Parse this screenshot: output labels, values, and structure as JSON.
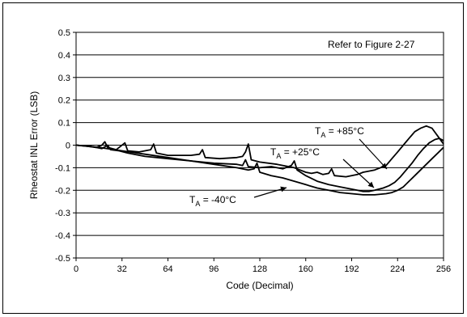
{
  "chart_data": {
    "type": "line",
    "title": "",
    "xlabel": "Code (Decimal)",
    "ylabel": "Rheostat INL Error (LSB)",
    "xlim": [
      0,
      256
    ],
    "ylim": [
      -0.5,
      0.5
    ],
    "x_ticks": [
      0,
      32,
      64,
      96,
      128,
      160,
      192,
      224,
      256
    ],
    "y_ticks": [
      0.5,
      0.4,
      0.3,
      0.2,
      0.1,
      0,
      -0.1,
      -0.2,
      -0.3,
      -0.4,
      -0.5
    ],
    "x_tick_labels": [
      "0",
      "32",
      "64",
      "96",
      "128",
      "160",
      "192",
      "224",
      "256"
    ],
    "y_tick_labels": [
      "0.5",
      "0.4",
      "0.3",
      "0.2",
      "0.1",
      "0",
      "-0.1",
      "-0.2",
      "-0.3",
      "-0.4",
      "-0.5"
    ],
    "grid": "horizontal",
    "note": "Refer to Figure 2-27",
    "series": [
      {
        "label_main": "T",
        "label_sub": "A",
        "label_rest": " = +85°C",
        "points": [
          [
            0,
            0
          ],
          [
            8,
            -0.005
          ],
          [
            14,
            -0.01
          ],
          [
            18,
            0
          ],
          [
            20,
            0.015
          ],
          [
            22,
            -0.01
          ],
          [
            28,
            -0.02
          ],
          [
            34,
            0.01
          ],
          [
            36,
            -0.025
          ],
          [
            44,
            -0.03
          ],
          [
            52,
            -0.02
          ],
          [
            54,
            0.005
          ],
          [
            56,
            -0.035
          ],
          [
            64,
            -0.045
          ],
          [
            80,
            -0.045
          ],
          [
            86,
            -0.04
          ],
          [
            88,
            -0.02
          ],
          [
            90,
            -0.055
          ],
          [
            100,
            -0.06
          ],
          [
            112,
            -0.055
          ],
          [
            116,
            -0.05
          ],
          [
            118,
            -0.03
          ],
          [
            120,
            0.005
          ],
          [
            122,
            -0.065
          ],
          [
            128,
            -0.075
          ],
          [
            140,
            -0.085
          ],
          [
            148,
            -0.095
          ],
          [
            152,
            -0.1
          ],
          [
            156,
            -0.11
          ],
          [
            160,
            -0.12
          ],
          [
            164,
            -0.125
          ],
          [
            168,
            -0.12
          ],
          [
            172,
            -0.13
          ],
          [
            176,
            -0.125
          ],
          [
            178,
            -0.105
          ],
          [
            180,
            -0.135
          ],
          [
            188,
            -0.14
          ],
          [
            196,
            -0.13
          ],
          [
            200,
            -0.12
          ],
          [
            208,
            -0.11
          ],
          [
            212,
            -0.1
          ],
          [
            216,
            -0.09
          ],
          [
            220,
            -0.06
          ],
          [
            224,
            -0.03
          ],
          [
            228,
            0
          ],
          [
            232,
            0.03
          ],
          [
            236,
            0.06
          ],
          [
            240,
            0.075
          ],
          [
            244,
            0.085
          ],
          [
            248,
            0.075
          ],
          [
            252,
            0.04
          ],
          [
            256,
            0.005
          ]
        ]
      },
      {
        "label_main": "T",
        "label_sub": "A",
        "label_rest": " = +25°C",
        "points": [
          [
            0,
            0
          ],
          [
            10,
            -0.005
          ],
          [
            18,
            -0.015
          ],
          [
            22,
            0
          ],
          [
            24,
            -0.02
          ],
          [
            30,
            -0.025
          ],
          [
            36,
            -0.035
          ],
          [
            48,
            -0.05
          ],
          [
            64,
            -0.06
          ],
          [
            80,
            -0.07
          ],
          [
            96,
            -0.08
          ],
          [
            112,
            -0.085
          ],
          [
            116,
            -0.09
          ],
          [
            118,
            -0.065
          ],
          [
            120,
            -0.095
          ],
          [
            128,
            -0.1
          ],
          [
            136,
            -0.095
          ],
          [
            144,
            -0.105
          ],
          [
            150,
            -0.09
          ],
          [
            152,
            -0.07
          ],
          [
            154,
            -0.11
          ],
          [
            160,
            -0.135
          ],
          [
            168,
            -0.16
          ],
          [
            176,
            -0.175
          ],
          [
            184,
            -0.185
          ],
          [
            192,
            -0.195
          ],
          [
            196,
            -0.2
          ],
          [
            200,
            -0.205
          ],
          [
            204,
            -0.205
          ],
          [
            208,
            -0.2
          ],
          [
            214,
            -0.19
          ],
          [
            218,
            -0.18
          ],
          [
            222,
            -0.165
          ],
          [
            226,
            -0.14
          ],
          [
            230,
            -0.11
          ],
          [
            234,
            -0.08
          ],
          [
            238,
            -0.045
          ],
          [
            242,
            -0.015
          ],
          [
            246,
            0.01
          ],
          [
            250,
            0.025
          ],
          [
            253,
            0.03
          ],
          [
            256,
            0.02
          ]
        ]
      },
      {
        "label_main": "T",
        "label_sub": "A",
        "label_rest": " = -40°C",
        "points": [
          [
            0,
            0
          ],
          [
            16,
            -0.01
          ],
          [
            32,
            -0.025
          ],
          [
            48,
            -0.04
          ],
          [
            64,
            -0.055
          ],
          [
            80,
            -0.07
          ],
          [
            96,
            -0.085
          ],
          [
            112,
            -0.1
          ],
          [
            120,
            -0.11
          ],
          [
            124,
            -0.105
          ],
          [
            126,
            -0.08
          ],
          [
            128,
            -0.12
          ],
          [
            136,
            -0.135
          ],
          [
            144,
            -0.145
          ],
          [
            152,
            -0.16
          ],
          [
            160,
            -0.175
          ],
          [
            168,
            -0.19
          ],
          [
            176,
            -0.2
          ],
          [
            184,
            -0.21
          ],
          [
            192,
            -0.215
          ],
          [
            200,
            -0.22
          ],
          [
            208,
            -0.22
          ],
          [
            216,
            -0.215
          ],
          [
            220,
            -0.21
          ],
          [
            224,
            -0.2
          ],
          [
            228,
            -0.185
          ],
          [
            232,
            -0.16
          ],
          [
            236,
            -0.135
          ],
          [
            240,
            -0.11
          ],
          [
            244,
            -0.085
          ],
          [
            248,
            -0.06
          ],
          [
            252,
            -0.035
          ],
          [
            256,
            -0.01
          ]
        ]
      }
    ]
  }
}
